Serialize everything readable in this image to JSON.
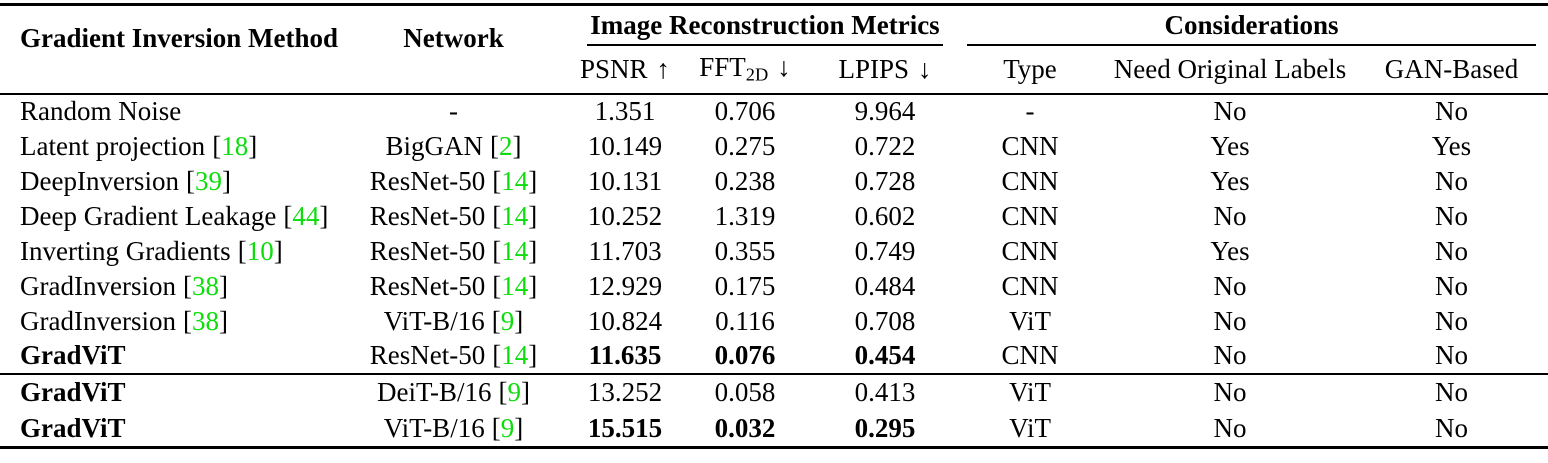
{
  "colors": {
    "citation": "#0ddd0d",
    "text": "#000000",
    "rule": "#000000"
  },
  "punct": {
    "open": "[",
    "close": "]"
  },
  "table": {
    "headers": {
      "method": "Gradient Inversion Method",
      "network": "Network",
      "metrics_group": "Image Reconstruction Metrics",
      "considerations_group": "Considerations",
      "psnr": {
        "base": "PSNR",
        "arrow": "↑"
      },
      "fft": {
        "base": "FFT",
        "sub": "2D",
        "arrow": "↓"
      },
      "lpips": {
        "base": "LPIPS",
        "arrow": "↓"
      },
      "type": "Type",
      "need_labels": "Need Original Labels",
      "gan_based": "GAN-Based"
    },
    "rows": [
      {
        "method": {
          "label": "Random Noise"
        },
        "network": {
          "label": "-"
        },
        "psnr": "1.351",
        "fft": "0.706",
        "lpips": "9.964",
        "type": "-",
        "need_labels": "No",
        "gan_based": "No",
        "bold_method": false,
        "bold_metrics": false
      },
      {
        "method": {
          "label": "Latent projection",
          "cite": "18"
        },
        "network": {
          "label": "BigGAN",
          "cite": "2"
        },
        "psnr": "10.149",
        "fft": "0.275",
        "lpips": "0.722",
        "type": "CNN",
        "need_labels": "Yes",
        "gan_based": "Yes",
        "bold_method": false,
        "bold_metrics": false
      },
      {
        "method": {
          "label": "DeepInversion",
          "cite": "39"
        },
        "network": {
          "label": "ResNet-50",
          "cite": "14"
        },
        "psnr": "10.131",
        "fft": "0.238",
        "lpips": "0.728",
        "type": "CNN",
        "need_labels": "Yes",
        "gan_based": "No",
        "bold_method": false,
        "bold_metrics": false
      },
      {
        "method": {
          "label": "Deep Gradient Leakage",
          "cite": "44"
        },
        "network": {
          "label": "ResNet-50",
          "cite": "14"
        },
        "psnr": "10.252",
        "fft": "1.319",
        "lpips": "0.602",
        "type": "CNN",
        "need_labels": "No",
        "gan_based": "No",
        "bold_method": false,
        "bold_metrics": false
      },
      {
        "method": {
          "label": "Inverting Gradients",
          "cite": "10"
        },
        "network": {
          "label": "ResNet-50",
          "cite": "14"
        },
        "psnr": "11.703",
        "fft": "0.355",
        "lpips": "0.749",
        "type": "CNN",
        "need_labels": "Yes",
        "gan_based": "No",
        "bold_method": false,
        "bold_metrics": false
      },
      {
        "method": {
          "label": "GradInversion",
          "cite": "38"
        },
        "network": {
          "label": "ResNet-50",
          "cite": "14"
        },
        "psnr": "12.929",
        "fft": "0.175",
        "lpips": "0.484",
        "type": "CNN",
        "need_labels": "No",
        "gan_based": "No",
        "bold_method": false,
        "bold_metrics": false
      },
      {
        "method": {
          "label": "GradInversion",
          "cite": "38"
        },
        "network": {
          "label": "ViT-B/16",
          "cite": "9"
        },
        "psnr": "10.824",
        "fft": "0.116",
        "lpips": "0.708",
        "type": "ViT",
        "need_labels": "No",
        "gan_based": "No",
        "bold_method": false,
        "bold_metrics": false
      },
      {
        "method": {
          "label": "GradViT"
        },
        "network": {
          "label": "ResNet-50",
          "cite": "14"
        },
        "psnr": "11.635",
        "fft": "0.076",
        "lpips": "0.454",
        "type": "CNN",
        "need_labels": "No",
        "gan_based": "No",
        "bold_method": true,
        "bold_metrics": true
      },
      {
        "method": {
          "label": "GradViT"
        },
        "network": {
          "label": "DeiT-B/16",
          "cite": "9"
        },
        "psnr": "13.252",
        "fft": "0.058",
        "lpips": "0.413",
        "type": "ViT",
        "need_labels": "No",
        "gan_based": "No",
        "bold_method": true,
        "bold_metrics": false
      },
      {
        "method": {
          "label": "GradViT"
        },
        "network": {
          "label": "ViT-B/16",
          "cite": "9"
        },
        "psnr": "15.515",
        "fft": "0.032",
        "lpips": "0.295",
        "type": "ViT",
        "need_labels": "No",
        "gan_based": "No",
        "bold_method": true,
        "bold_metrics": true
      }
    ]
  }
}
